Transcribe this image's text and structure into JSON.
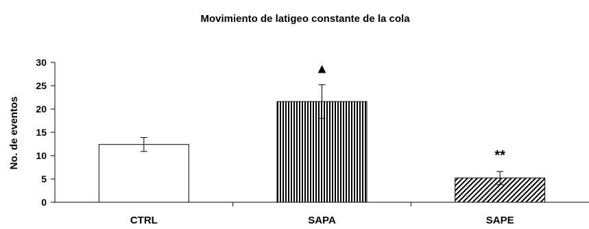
{
  "chart_data": {
    "type": "bar",
    "title": "Movimiento de latigeo constante de la cola",
    "xlabel": "",
    "ylabel": "No. de eventos",
    "ylim": [
      0,
      30
    ],
    "yticks": [
      "0",
      "5",
      "10",
      "15",
      "20",
      "25",
      "30"
    ],
    "categories": [
      "CTRL",
      "SAPA",
      "SAPE"
    ],
    "values": [
      12.4,
      21.6,
      5.2
    ],
    "errors": [
      1.5,
      3.6,
      1.4
    ],
    "fills": [
      "none",
      "vertical-stripes",
      "diagonal-hatch"
    ],
    "annotations": [
      "",
      "▲",
      "**"
    ],
    "grid": false,
    "legend": "none",
    "colors": {
      "bar_edge": "#000000",
      "background": "#ffffff"
    }
  }
}
